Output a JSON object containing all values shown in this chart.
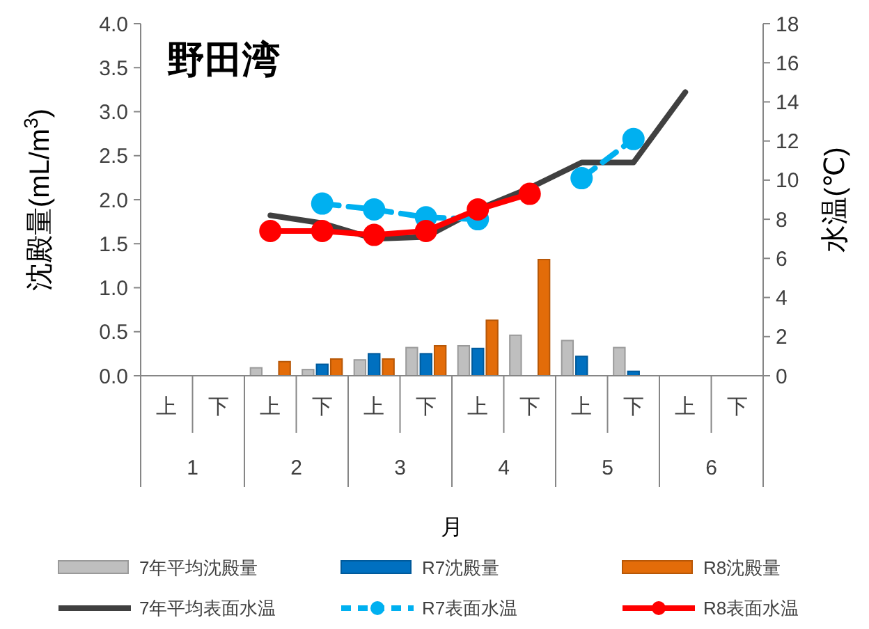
{
  "chart_data": {
    "type": "bar",
    "title": "野田湾",
    "xlabel": "月",
    "ylabel": "沈殿量(mL/m$^{3}$)",
    "y2label": "水温(℃)",
    "categories": [
      "上",
      "下",
      "上",
      "下",
      "上",
      "下",
      "上",
      "下",
      "上",
      "下",
      "上",
      "下"
    ],
    "annotations": [
      "1",
      "2",
      "3",
      "4",
      "5",
      "6"
    ],
    "ylim": [
      0,
      4
    ],
    "yticks": [
      {
        "value": 0,
        "label": "0.0"
      },
      {
        "value": 0.5,
        "label": "0.5"
      },
      {
        "value": 1,
        "label": "1.0"
      },
      {
        "value": 1.5,
        "label": "1.5"
      },
      {
        "value": 2,
        "label": "2.0"
      },
      {
        "value": 2.5,
        "label": "2.5"
      },
      {
        "value": 3,
        "label": "3.0"
      },
      {
        "value": 3.5,
        "label": "3.5"
      },
      {
        "value": 4,
        "label": "4.0"
      }
    ],
    "y2lim": [
      0,
      18
    ],
    "y2ticks": [
      0,
      2,
      4,
      6,
      8,
      10,
      12,
      14,
      16,
      18
    ],
    "legend": "bottom",
    "series": [
      {
        "name": "7年平均沈殿量",
        "color": "#bfbfbf",
        "values": [
          null,
          null,
          0.09,
          0.07,
          0.18,
          0.32,
          0.34,
          0.46,
          0.4,
          0.32,
          null,
          null
        ]
      },
      {
        "name": "R7沈殿量",
        "color": "#0070c0",
        "values": [
          null,
          null,
          null,
          0.13,
          0.25,
          0.25,
          0.31,
          null,
          0.22,
          0.05,
          null,
          null
        ]
      },
      {
        "name": "R8沈殿量",
        "color": "#e36c09",
        "values": [
          null,
          null,
          0.16,
          0.19,
          0.19,
          0.34,
          0.63,
          1.32,
          null,
          null,
          null,
          null
        ]
      },
      {
        "name": "7年平均表面水温",
        "type": "line",
        "axis": "y2",
        "color": "#404040",
        "line_style": "solid",
        "marker": "none",
        "values": [
          null,
          null,
          8.2,
          7.8,
          7.0,
          7.1,
          8.5,
          9.6,
          10.9,
          10.9,
          14.5,
          null
        ]
      },
      {
        "name": "R7表面水温",
        "type": "line",
        "axis": "y2",
        "color": "#00b0f0",
        "line_style": "dashed",
        "marker": "circle",
        "values": [
          null,
          null,
          null,
          8.8,
          8.5,
          8.1,
          8.0,
          null,
          10.1,
          12.1,
          null,
          null
        ]
      },
      {
        "name": "R8表面水温",
        "type": "line",
        "axis": "y2",
        "color": "#ff0000",
        "line_style": "solid",
        "marker": "circle",
        "values": [
          null,
          null,
          7.4,
          7.4,
          7.2,
          7.4,
          8.5,
          9.3,
          null,
          null,
          null,
          null
        ]
      }
    ]
  }
}
